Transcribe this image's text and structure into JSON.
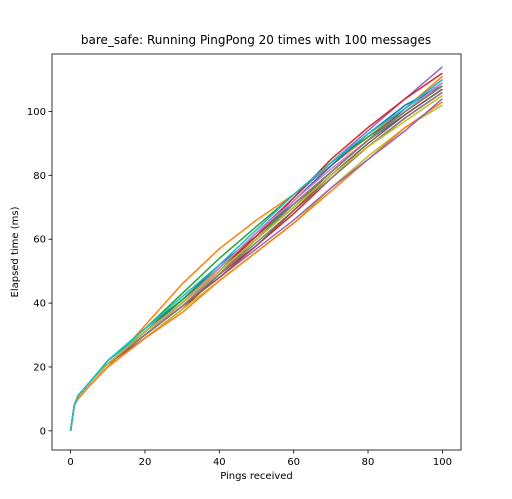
{
  "chart_data": {
    "type": "line",
    "title": "bare_safe: Running PingPong 20 times with 100 messages",
    "xlabel": "Pings received",
    "ylabel": "Elapsed time (ms)",
    "xlim": [
      -5,
      105
    ],
    "ylim": [
      -6,
      118
    ],
    "xticks": [
      0,
      20,
      40,
      60,
      80,
      100
    ],
    "yticks": [
      0,
      20,
      40,
      60,
      80,
      100
    ],
    "grid": false,
    "legend": "none",
    "x": [
      0,
      1,
      2,
      5,
      10,
      20,
      30,
      40,
      50,
      60,
      70,
      80,
      90,
      100
    ],
    "series": [
      {
        "color": "#1f77b4",
        "values": [
          0,
          8,
          11,
          15,
          21,
          31,
          40,
          51,
          62,
          71,
          81,
          91,
          99,
          107
        ]
      },
      {
        "color": "#ff7f0e",
        "values": [
          0,
          8,
          10,
          14,
          20,
          33,
          46,
          57,
          66,
          74,
          83,
          92,
          101,
          111
        ]
      },
      {
        "color": "#2ca02c",
        "values": [
          0,
          8,
          11,
          15,
          22,
          32,
          43,
          54,
          64,
          74,
          84,
          92,
          100,
          109
        ]
      },
      {
        "color": "#d62728",
        "values": [
          0,
          8,
          11,
          15,
          21,
          29,
          38,
          49,
          58,
          68,
          79,
          89,
          98,
          106
        ]
      },
      {
        "color": "#9467bd",
        "values": [
          0,
          8,
          11,
          15,
          21,
          30,
          40,
          51,
          62,
          73,
          84,
          94,
          104,
          114
        ]
      },
      {
        "color": "#8c564b",
        "values": [
          0,
          8,
          11,
          15,
          21,
          30,
          39,
          49,
          60,
          70,
          81,
          91,
          101,
          110
        ]
      },
      {
        "color": "#e377c2",
        "values": [
          0,
          8,
          11,
          15,
          21,
          30,
          39,
          50,
          60,
          71,
          81,
          91,
          100,
          108
        ]
      },
      {
        "color": "#7f7f7f",
        "values": [
          0,
          8,
          11,
          15,
          21,
          30,
          39,
          49,
          59,
          69,
          79,
          89,
          98,
          106
        ]
      },
      {
        "color": "#bcbd22",
        "values": [
          0,
          8,
          10,
          14,
          20,
          29,
          38,
          47,
          56,
          65,
          76,
          86,
          95,
          102
        ]
      },
      {
        "color": "#17becf",
        "values": [
          0,
          8,
          11,
          15,
          22,
          31,
          41,
          51,
          62,
          72,
          83,
          93,
          101,
          109
        ]
      },
      {
        "color": "#1f77b4",
        "values": [
          0,
          8,
          11,
          15,
          21,
          31,
          41,
          52,
          61,
          72,
          83,
          93,
          102,
          108
        ]
      },
      {
        "color": "#ff7f0e",
        "values": [
          0,
          8,
          10,
          14,
          20,
          29,
          37,
          47,
          56,
          65,
          75,
          85,
          95,
          103
        ]
      },
      {
        "color": "#2ca02c",
        "values": [
          0,
          8,
          11,
          15,
          22,
          32,
          41,
          51,
          61,
          71,
          81,
          91,
          100,
          108
        ]
      },
      {
        "color": "#d62728",
        "values": [
          0,
          8,
          11,
          15,
          21,
          31,
          40,
          50,
          61,
          73,
          85,
          95,
          104,
          112
        ]
      },
      {
        "color": "#9467bd",
        "values": [
          0,
          8,
          11,
          15,
          21,
          30,
          39,
          48,
          57,
          66,
          76,
          85,
          94,
          104
        ]
      },
      {
        "color": "#8c564b",
        "values": [
          0,
          8,
          11,
          15,
          21,
          30,
          39,
          48,
          58,
          69,
          80,
          90,
          99,
          107
        ]
      },
      {
        "color": "#e377c2",
        "values": [
          0,
          8,
          11,
          15,
          21,
          30,
          40,
          51,
          62,
          72,
          82,
          91,
          100,
          109
        ]
      },
      {
        "color": "#7f7f7f",
        "values": [
          0,
          8,
          11,
          15,
          21,
          30,
          39,
          49,
          60,
          71,
          81,
          91,
          100,
          108
        ]
      },
      {
        "color": "#bcbd22",
        "values": [
          0,
          8,
          11,
          15,
          21,
          31,
          40,
          50,
          60,
          70,
          80,
          89,
          97,
          105
        ]
      },
      {
        "color": "#17becf",
        "values": [
          0,
          8,
          11,
          15,
          22,
          32,
          42,
          52,
          63,
          74,
          84,
          93,
          101,
          110
        ]
      }
    ]
  }
}
